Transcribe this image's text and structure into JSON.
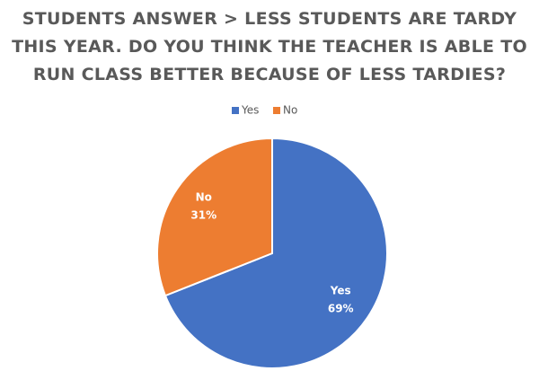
{
  "chart_data": {
    "type": "pie",
    "title": "STUDENTS ANSWER > LESS STUDENTS ARE TARDY THIS YEAR. DO YOU THINK THE TEACHER IS ABLE TO RUN CLASS BETTER BECAUSE OF LESS TARDIES?",
    "categories": [
      "Yes",
      "No"
    ],
    "values": [
      69,
      31
    ],
    "value_labels": [
      "69%",
      "31%"
    ],
    "colors": [
      "#4472c4",
      "#ed7d31"
    ],
    "legend": "top"
  }
}
